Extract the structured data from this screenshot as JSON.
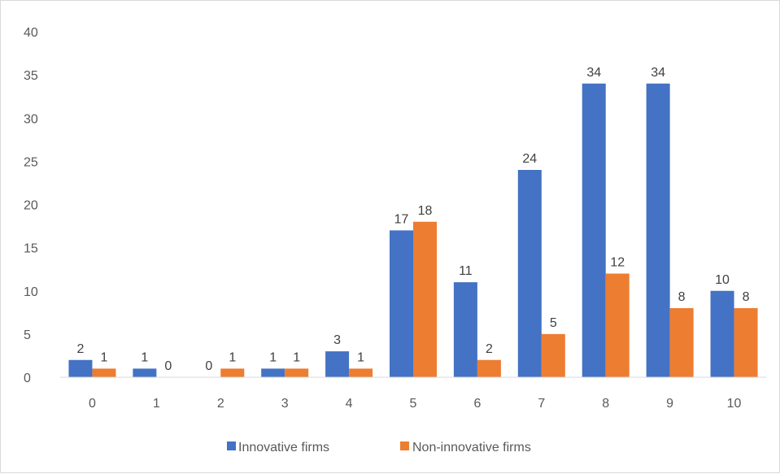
{
  "chart_data": {
    "type": "bar",
    "categories": [
      "0",
      "1",
      "2",
      "3",
      "4",
      "5",
      "6",
      "7",
      "8",
      "9",
      "10"
    ],
    "series": [
      {
        "name": "Innovative firms",
        "color": "#4472C4",
        "values": [
          2,
          1,
          0,
          1,
          3,
          17,
          11,
          24,
          34,
          34,
          10
        ]
      },
      {
        "name": "Non-innovative firms",
        "color": "#ED7D31",
        "values": [
          1,
          0,
          1,
          1,
          1,
          18,
          2,
          5,
          12,
          8,
          8
        ]
      }
    ],
    "title": "",
    "xlabel": "",
    "ylabel": "",
    "ylim": [
      0,
      40
    ],
    "yticks": [
      0,
      5,
      10,
      15,
      20,
      25,
      30,
      35,
      40
    ],
    "grid": false,
    "legend": "bottom",
    "data_labels": true
  }
}
